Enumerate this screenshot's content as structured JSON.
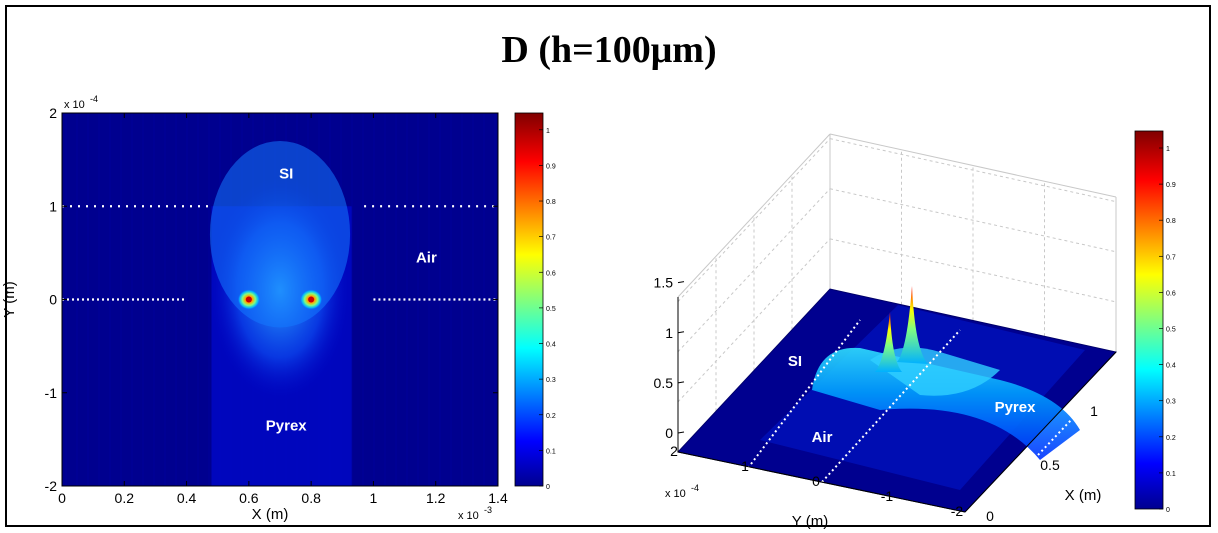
{
  "figure_title": "D (h=100μm)",
  "colors": {
    "bg_field": "#00008f",
    "peak": "#8b0000",
    "grid": "#c8c8c8"
  },
  "chart_data": [
    {
      "type": "heatmap",
      "title": "",
      "xlabel": "X (m)",
      "ylabel": "Y (m)",
      "x_tick_labels": [
        "0",
        "0.2",
        "0.4",
        "0.6",
        "0.8",
        "1",
        "1.2",
        "1.4"
      ],
      "x_ticks": [
        0,
        0.2,
        0.4,
        0.6,
        0.8,
        1.0,
        1.2,
        1.4
      ],
      "x_exponent": "x 10",
      "x_exponent_power": "-3",
      "xlim": [
        0,
        1.4
      ],
      "y_tick_labels": [
        "2",
        "1",
        "0",
        "-1",
        "-2"
      ],
      "y_ticks": [
        2,
        1,
        0,
        -1,
        -2
      ],
      "y_exponent": "x 10",
      "y_exponent_power": "-4",
      "ylim": [
        -2,
        2
      ],
      "region_labels": [
        "SI",
        "Air",
        "Pyrex"
      ],
      "peaks": [
        {
          "x": 0.6,
          "y": 0,
          "value": 1.0
        },
        {
          "x": 0.8,
          "y": 0,
          "value": 1.0
        }
      ],
      "colorbar": {
        "min": 0,
        "max": 1,
        "tick_labels": [
          "0",
          "0.1",
          "0.2",
          "0.3",
          "0.4",
          "0.5",
          "0.6",
          "0.7",
          "0.8",
          "0.9",
          "1"
        ]
      }
    },
    {
      "type": "surface",
      "title": "",
      "xlabel": "X (m)",
      "ylabel": "Y (m)",
      "z_tick_labels": [
        "0",
        "0.5",
        "1",
        "1.5"
      ],
      "z_ticks": [
        0,
        0.5,
        1,
        1.5
      ],
      "zlim": [
        0,
        1.5
      ],
      "y_tick_labels": [
        "2",
        "1",
        "0",
        "-1",
        "-2"
      ],
      "y_exponent": "x 10",
      "y_exponent_power": "-4",
      "x_tick_labels": [
        "0",
        "0.5",
        "1"
      ],
      "region_labels": [
        "SI",
        "Air",
        "Pyrex"
      ],
      "peak_max": 1.35,
      "colorbar": {
        "min": 0,
        "max": 1,
        "tick_labels": [
          "0",
          "0.1",
          "0.2",
          "0.3",
          "0.4",
          "0.5",
          "0.6",
          "0.7",
          "0.8",
          "0.9",
          "1"
        ]
      }
    }
  ]
}
